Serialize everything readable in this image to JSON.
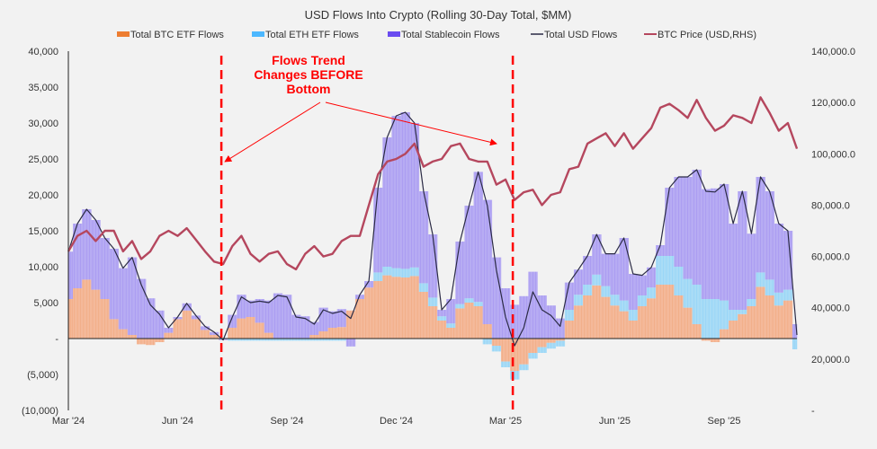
{
  "chart_data": {
    "type": "bar",
    "title": "USD Flows Into Crypto (Rolling 30-Day Total, $MM)",
    "x_unit": "months since Mar 2024 (weekly steps)",
    "x": [
      0,
      0.25,
      0.5,
      0.75,
      1,
      1.25,
      1.5,
      1.75,
      2,
      2.25,
      2.5,
      2.75,
      3,
      3.25,
      3.5,
      3.75,
      4,
      4.25,
      4.5,
      4.75,
      5,
      5.25,
      5.5,
      5.75,
      6,
      6.25,
      6.5,
      6.75,
      7,
      7.25,
      7.5,
      7.75,
      8,
      8.25,
      8.5,
      8.75,
      9,
      9.25,
      9.5,
      9.75,
      10,
      10.25,
      10.5,
      10.75,
      11,
      11.25,
      11.5,
      11.75,
      12,
      12.25,
      12.5,
      12.75,
      13,
      13.25,
      13.5,
      13.75,
      14,
      14.25,
      14.5,
      14.75,
      15,
      15.25,
      15.5,
      15.75,
      16,
      16.25,
      16.5,
      16.75,
      17,
      17.25,
      17.5,
      17.75,
      18,
      18.25,
      18.5,
      18.75,
      19,
      19.25,
      19.5,
      19.75,
      20
    ],
    "xlim": [
      0,
      20
    ],
    "x_ticks": [
      {
        "value": 0,
        "label": "Mar '24"
      },
      {
        "value": 3,
        "label": "Jun '24"
      },
      {
        "value": 6,
        "label": "Sep '24"
      },
      {
        "value": 9,
        "label": "Dec '24"
      },
      {
        "value": 12,
        "label": "Mar '25"
      },
      {
        "value": 15,
        "label": "Jun '25"
      },
      {
        "value": 18,
        "label": "Sep '25"
      }
    ],
    "y_left": {
      "lim": [
        -10000,
        40000
      ],
      "ticks": [
        {
          "value": 40000,
          "label": "40,000"
        },
        {
          "value": 35000,
          "label": "35,000"
        },
        {
          "value": 30000,
          "label": "30,000"
        },
        {
          "value": 25000,
          "label": "25,000"
        },
        {
          "value": 20000,
          "label": "20,000"
        },
        {
          "value": 15000,
          "label": "15,000"
        },
        {
          "value": 10000,
          "label": "10,000"
        },
        {
          "value": 5000,
          "label": "5,000"
        },
        {
          "value": 0,
          "label": "-"
        },
        {
          "value": -5000,
          "label": "(5,000)"
        },
        {
          "value": -10000,
          "label": "(10,000)"
        }
      ]
    },
    "y_right": {
      "lim": [
        0,
        140000
      ],
      "ticks": [
        {
          "value": 140000,
          "label": "140,000.0"
        },
        {
          "value": 120000,
          "label": "120,000.0"
        },
        {
          "value": 100000,
          "label": "100,000.0"
        },
        {
          "value": 80000,
          "label": "80,000.0"
        },
        {
          "value": 60000,
          "label": "60,000.0"
        },
        {
          "value": 40000,
          "label": "40,000.0"
        },
        {
          "value": 20000,
          "label": "20,000.0"
        },
        {
          "value": 0,
          "label": "-"
        }
      ]
    },
    "legend_position": "top",
    "series": [
      {
        "name": "Total BTC ETF Flows",
        "type": "stacked-bar",
        "color": "#ed7d31",
        "fill": "#f4b99a",
        "values": [
          5500,
          7000,
          8200,
          6800,
          5500,
          2700,
          1300,
          500,
          -800,
          -900,
          -500,
          800,
          2700,
          3900,
          2700,
          1200,
          500,
          0,
          1500,
          2800,
          3000,
          2200,
          800,
          0,
          0,
          0,
          0,
          500,
          1000,
          1500,
          1600,
          3900,
          5500,
          7100,
          8000,
          8800,
          8600,
          8500,
          8700,
          6500,
          4500,
          2500,
          1500,
          4200,
          5000,
          4500,
          2000,
          -1000,
          -3200,
          -4500,
          -3600,
          -2000,
          -1200,
          -600,
          -300,
          2500,
          4600,
          6000,
          7400,
          5800,
          4600,
          3800,
          2500,
          4500,
          5600,
          7500,
          7500,
          6000,
          4300,
          2000,
          -300,
          -500,
          1300,
          2500,
          3400,
          4500,
          7200,
          6000,
          4600,
          5300,
          0
        ]
      },
      {
        "name": "Total ETH ETF Flows",
        "type": "stacked-bar",
        "color": "#4db8ff",
        "fill": "#a9dcf6",
        "values": [
          0,
          0,
          0,
          0,
          0,
          0,
          0,
          0,
          0,
          0,
          0,
          0,
          0,
          0,
          0,
          0,
          0,
          0,
          -300,
          -300,
          -300,
          -300,
          -300,
          -300,
          -300,
          -300,
          -300,
          -300,
          -300,
          -300,
          -300,
          0,
          0,
          0,
          1200,
          1200,
          1200,
          1200,
          1200,
          1200,
          1200,
          600,
          600,
          600,
          600,
          600,
          -800,
          -800,
          -800,
          -1200,
          -800,
          -800,
          -800,
          -800,
          -800,
          1500,
          1500,
          1500,
          1500,
          1500,
          1500,
          1500,
          1500,
          1500,
          1500,
          4000,
          4000,
          4000,
          4000,
          5500,
          5500,
          5500,
          4000,
          1500,
          600,
          1000,
          2000,
          2200,
          1800,
          1500,
          -1500
        ]
      },
      {
        "name": "Total Stablecoin Flows",
        "type": "stacked-bar",
        "color": "#6a4cf0",
        "fill": "#b7acf3",
        "values": [
          6600,
          9000,
          9800,
          9700,
          8500,
          9800,
          8500,
          10800,
          8300,
          5600,
          3900,
          700,
          300,
          1000,
          500,
          500,
          400,
          -200,
          1800,
          3300,
          2300,
          3300,
          4500,
          6300,
          6100,
          3300,
          3100,
          1800,
          3300,
          2300,
          2500,
          -1100,
          600,
          900,
          11800,
          18000,
          21200,
          21800,
          20100,
          12800,
          8800,
          900,
          3400,
          8700,
          12900,
          18100,
          17300,
          11300,
          7000,
          4700,
          5900,
          9300,
          6000,
          4600,
          2800,
          3800,
          3500,
          4000,
          5600,
          4500,
          5700,
          8700,
          5000,
          2800,
          2800,
          1500,
          9500,
          12500,
          14200,
          16000,
          15300,
          15400,
          16200,
          12000,
          16500,
          9100,
          13300,
          12300,
          9600,
          8200,
          2000
        ]
      },
      {
        "name": "Total USD Flows",
        "type": "line",
        "color": "#2b2b45",
        "values": [
          12100,
          16000,
          18000,
          16500,
          14000,
          12500,
          9800,
          11300,
          7500,
          4700,
          3400,
          1500,
          3000,
          4900,
          3200,
          1700,
          900,
          -200,
          3000,
          5800,
          5000,
          5200,
          5000,
          6000,
          5800,
          3000,
          2800,
          2000,
          4000,
          3500,
          3800,
          2800,
          6100,
          8000,
          21000,
          28000,
          31000,
          31500,
          30000,
          20500,
          14500,
          4000,
          5500,
          13500,
          18500,
          23200,
          18500,
          9500,
          3000,
          -1000,
          1500,
          6500,
          4000,
          3200,
          1700,
          7800,
          9600,
          11500,
          14500,
          11800,
          11800,
          14000,
          9000,
          8800,
          9900,
          13000,
          21000,
          22500,
          22500,
          23500,
          20500,
          20400,
          21500,
          16000,
          20500,
          14600,
          22500,
          20500,
          16000,
          15000,
          500
        ]
      },
      {
        "name": "BTC Price (USD,RHS)",
        "type": "line",
        "axis": "right",
        "color": "#b5475e",
        "values": [
          62000,
          68000,
          70000,
          66000,
          70000,
          70000,
          62000,
          66000,
          59000,
          62000,
          68000,
          70000,
          68000,
          71000,
          66500,
          62000,
          58000,
          57000,
          64000,
          68000,
          61000,
          58000,
          61000,
          62000,
          57000,
          55000,
          61000,
          64000,
          60000,
          61000,
          66000,
          68000,
          68000,
          80000,
          92000,
          97000,
          98000,
          100000,
          104000,
          95000,
          97000,
          98000,
          103000,
          104000,
          98000,
          97000,
          97000,
          88000,
          90000,
          82000,
          85000,
          86000,
          80000,
          84000,
          85000,
          94000,
          95000,
          104000,
          106000,
          108000,
          103000,
          108000,
          102000,
          106000,
          110000,
          118000,
          119500,
          117000,
          114000,
          121000,
          114000,
          109000,
          111000,
          115000,
          114000,
          112000,
          122000,
          116000,
          109000,
          112000,
          102000
        ]
      }
    ],
    "annotations": {
      "text_lines": [
        "Flows Trend",
        "Changes BEFORE",
        "Bottom"
      ],
      "marker_dates": [
        "Jul '24",
        "Mar '25"
      ],
      "marker_months": [
        4.2,
        12.2
      ],
      "marker_color": "#ff0000"
    }
  }
}
